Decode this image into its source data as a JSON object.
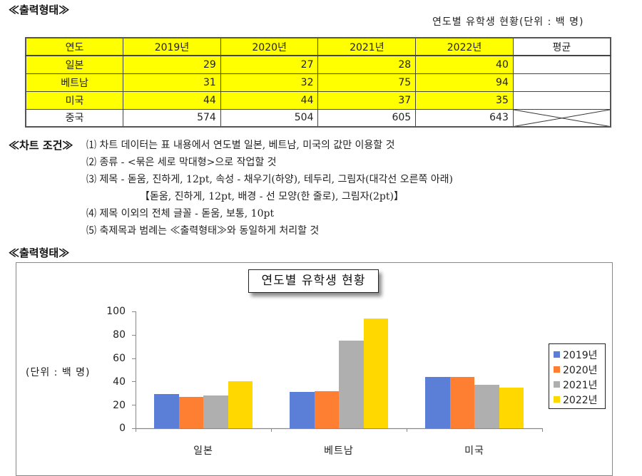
{
  "output_heading_1": "≪출력형태≫",
  "table_caption": "연도별 유학생 현황(단위 : 백 명)",
  "table": {
    "headers": [
      "연도",
      "2019년",
      "2020년",
      "2021년",
      "2022년",
      "평균"
    ],
    "rows": [
      {
        "label": "일본",
        "values": [
          "29",
          "27",
          "28",
          "40"
        ],
        "avg": ""
      },
      {
        "label": "베트남",
        "values": [
          "31",
          "32",
          "75",
          "94"
        ],
        "avg": ""
      },
      {
        "label": "미국",
        "values": [
          "44",
          "44",
          "37",
          "35"
        ],
        "avg": ""
      },
      {
        "label": "중국",
        "values": [
          "574",
          "504",
          "605",
          "643"
        ],
        "avg": "X"
      }
    ],
    "highlight_color": "#ffff00"
  },
  "chart_conditions": {
    "label": "≪차트 조건≫",
    "items": [
      "⑴ 차트 데이터는 표 내용에서 연도별 일본, 베트남, 미국의 값만 이용할 것",
      "⑵ 종류 - <묶은 세로 막대형>으로 작업할 것",
      "⑶ 제목 - 돋움, 진하게, 12pt, 속성 - 채우기(하양), 테두리, 그림자(대각선 오른쪽 아래)",
      "【돋움, 진하게, 12pt, 배경 - 선 모양(한 줄로), 그림자(2pt)】",
      "⑷ 제목 이외의 전체 글꼴 - 돋움, 보통, 10pt",
      "⑸ 축제목과 범례는 ≪출력형태≫와 동일하게 처리할 것"
    ]
  },
  "output_heading_2": "≪출력형태≫",
  "chart_data": {
    "type": "bar",
    "title": "연도별 유학생 현황",
    "xlabel": "",
    "ylabel": "(단위 : 백 명)",
    "categories": [
      "일본",
      "베트남",
      "미국"
    ],
    "series": [
      {
        "name": "2019년",
        "values": [
          29,
          31,
          44
        ],
        "color": "#5b7fd6"
      },
      {
        "name": "2020년",
        "values": [
          27,
          32,
          44
        ],
        "color": "#ff7f32"
      },
      {
        "name": "2021년",
        "values": [
          28,
          75,
          37
        ],
        "color": "#afafaf"
      },
      {
        "name": "2022년",
        "values": [
          40,
          94,
          35
        ],
        "color": "#ffd800"
      }
    ],
    "ylim": [
      0,
      100
    ],
    "yticks": [
      "0",
      "20",
      "40",
      "60",
      "80",
      "100"
    ],
    "grid": false,
    "legend_position": "right"
  }
}
